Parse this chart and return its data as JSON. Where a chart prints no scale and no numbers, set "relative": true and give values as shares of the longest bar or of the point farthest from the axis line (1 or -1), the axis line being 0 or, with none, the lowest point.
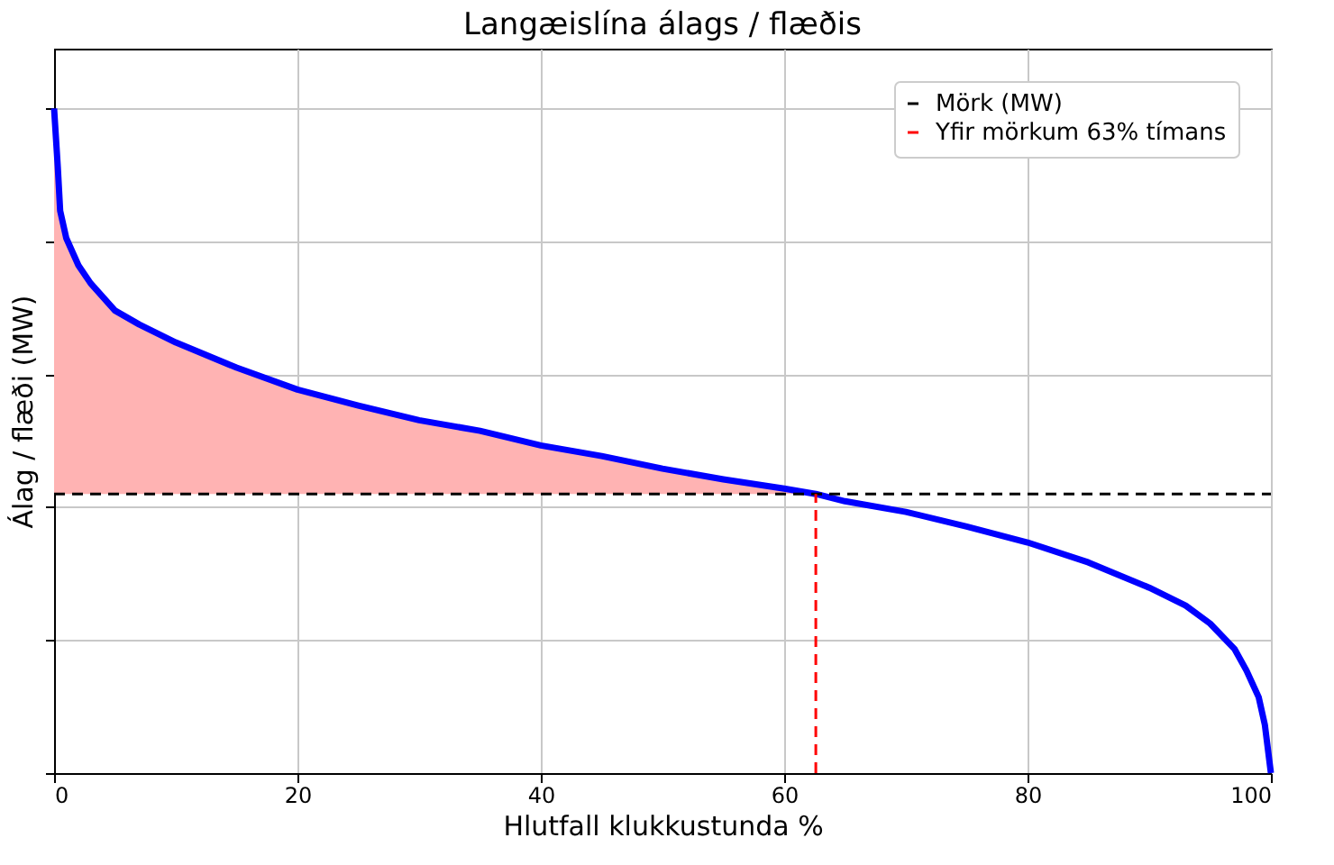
{
  "chart_data": {
    "type": "line",
    "title": "Langæislína álags / flæðis",
    "xlabel": "Hlutfall klukkustunda %",
    "ylabel": "Álag / flæði (MW)",
    "relative": true,
    "xlim": [
      0,
      100
    ],
    "xticks": [
      0,
      20,
      40,
      60,
      80,
      100
    ],
    "grid": true,
    "legend": "top right",
    "marker": "none",
    "line_style": "solid",
    "series": [
      {
        "color": "#0000ff",
        "x": [
          0,
          0.3,
          0.5,
          1,
          2,
          3,
          5,
          7,
          10,
          15,
          20,
          25,
          30,
          35,
          40,
          45,
          50,
          55,
          60,
          62.6,
          65,
          70,
          75,
          80,
          85,
          90,
          93,
          95,
          97,
          98,
          99,
          99.5,
          100
        ],
        "values": [
          1.0,
          0.913,
          0.846,
          0.805,
          0.764,
          0.737,
          0.696,
          0.675,
          0.648,
          0.61,
          0.577,
          0.553,
          0.531,
          0.515,
          0.493,
          0.477,
          0.458,
          0.442,
          0.428,
          0.42,
          0.409,
          0.393,
          0.371,
          0.347,
          0.317,
          0.279,
          0.252,
          0.225,
          0.187,
          0.154,
          0.114,
          0.073,
          0
        ],
        "lower": [
          0.42,
          0.42,
          0.42,
          0.42,
          0.42,
          0.42,
          0.42,
          0.42,
          0.42,
          0.42,
          0.42,
          0.42,
          0.42,
          0.42,
          0.42,
          0.42,
          0.42,
          0.42,
          0.42,
          0.42,
          null,
          null,
          null,
          null,
          null,
          null,
          null,
          null,
          null,
          null,
          null,
          null,
          null
        ],
        "upper": [
          1.0,
          0.913,
          0.846,
          0.805,
          0.764,
          0.737,
          0.696,
          0.675,
          0.648,
          0.61,
          0.577,
          0.553,
          0.531,
          0.515,
          0.493,
          0.477,
          0.458,
          0.442,
          0.428,
          0.42,
          null,
          null,
          null,
          null,
          null,
          null,
          null,
          null,
          null,
          null,
          null,
          null,
          null
        ]
      }
    ],
    "ref_lines": [
      {
        "axis": "y",
        "value": 0.42,
        "label": "Mörk (MW)",
        "color": "#000000",
        "line_style": "dashed"
      },
      {
        "axis": "x",
        "value": 62.6,
        "label": "Yfir mörkum 63% tímans",
        "color": "#ff0000",
        "line_style": "dashed"
      }
    ]
  }
}
